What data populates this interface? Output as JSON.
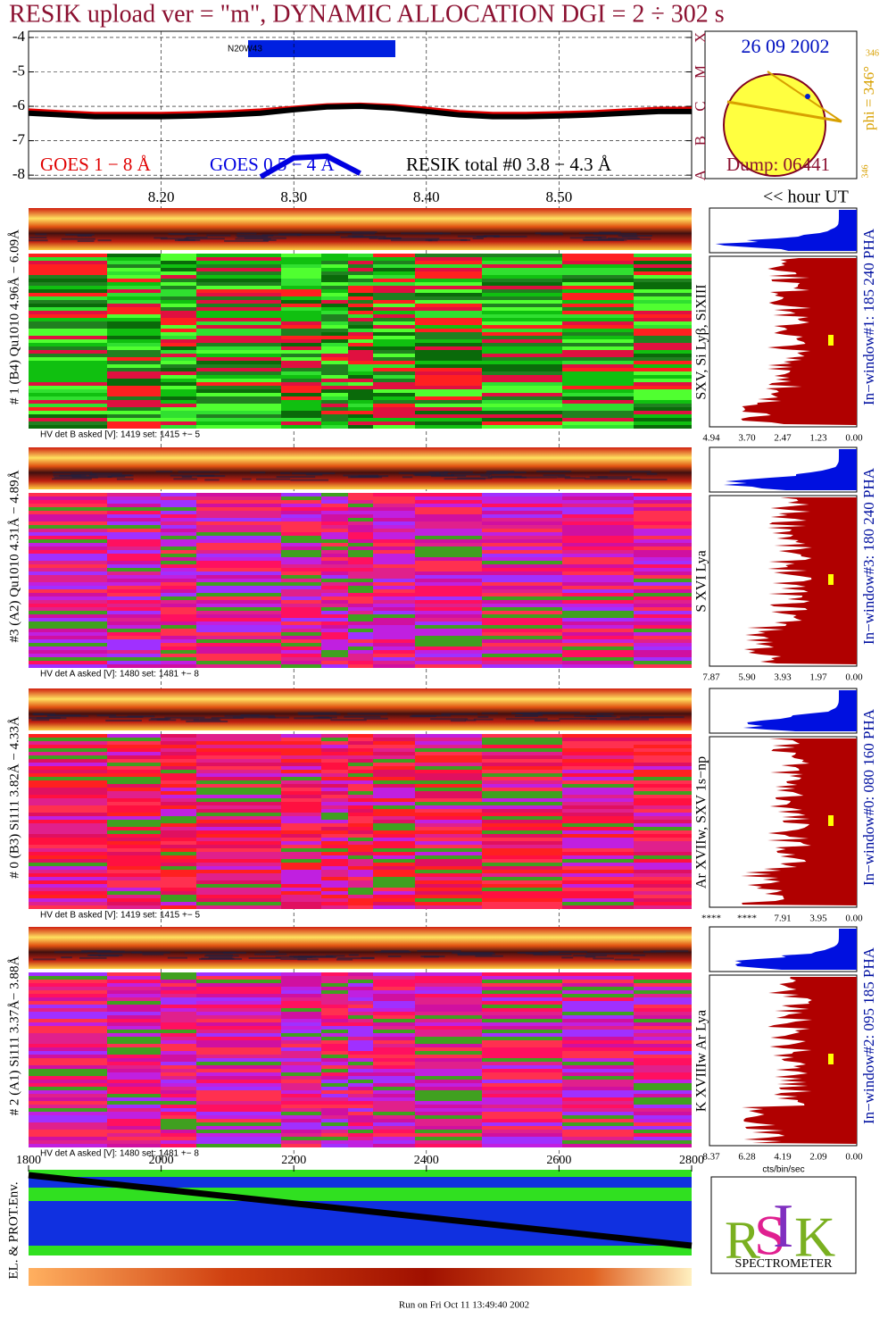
{
  "title": "RESIK upload ver = \"m\", DYNAMIC ALLOCATION  DGI =   2 ÷ 302 s",
  "chart_data": {
    "type": "line",
    "x": [
      8.1,
      8.125,
      8.15,
      8.175,
      8.2,
      8.225,
      8.25,
      8.275,
      8.3,
      8.325,
      8.35,
      8.375,
      8.4,
      8.425,
      8.45,
      8.475,
      8.5,
      8.525,
      8.55,
      8.575,
      8.6
    ],
    "xlim": [
      8.1,
      8.6
    ],
    "xticks": [
      {
        "value": 8.2,
        "label": "8.20"
      },
      {
        "value": 8.3,
        "label": "8.30"
      },
      {
        "value": 8.4,
        "label": "8.40"
      },
      {
        "value": 8.5,
        "label": "8.50"
      }
    ],
    "ylim": [
      -8.1,
      -3.82
    ],
    "yticks": [
      -4,
      -5,
      -6,
      -7,
      -8
    ],
    "y2ticks": [
      {
        "value": -8,
        "label": "A"
      },
      {
        "value": -7,
        "label": "B"
      },
      {
        "value": -6,
        "label": "C"
      },
      {
        "value": -5,
        "label": "M"
      },
      {
        "value": -4,
        "label": "X"
      }
    ],
    "x2lim": [
      1800,
      2800
    ],
    "x2ticks": [
      1800,
      2000,
      2200,
      2400,
      2600,
      2800
    ],
    "x2label": "<< hour UT",
    "grid": true,
    "annotation": "N20W43",
    "series": [
      {
        "name": "GOES 1 − 8 Å",
        "color": "#e00000",
        "values": [
          -6.1,
          -6.15,
          -6.2,
          -6.2,
          -6.2,
          -6.18,
          -6.15,
          -6.1,
          -6.02,
          -5.95,
          -5.93,
          -5.97,
          -6.05,
          -6.15,
          -6.2,
          -6.2,
          -6.18,
          -6.15,
          -6.1,
          -6.05,
          -6.05
        ]
      },
      {
        "name": "GOES 0.5 − 4 Å",
        "color": "#0000e0",
        "values": [
          null,
          null,
          null,
          null,
          null,
          null,
          null,
          -8.05,
          -7.5,
          -7.45,
          -7.95,
          null,
          null,
          null,
          null,
          null,
          null,
          null,
          null,
          null,
          null
        ]
      },
      {
        "name": "RESIK total #0  3.8 − 4.3 Å",
        "color": "#000000",
        "values": [
          -6.2,
          -6.25,
          -6.3,
          -6.3,
          -6.3,
          -6.28,
          -6.25,
          -6.2,
          -6.1,
          -6.02,
          -6.0,
          -6.05,
          -6.15,
          -6.25,
          -6.3,
          -6.3,
          -6.28,
          -6.25,
          -6.2,
          -6.15,
          -6.15
        ]
      }
    ]
  },
  "solar_disk": {
    "date": "26 09 2002",
    "dump": "Dump: 06441",
    "phi": "phi = 346°",
    "angle_top": "346",
    "angle_bottom": "346"
  },
  "panels": [
    {
      "label": "# 1 (B4) Qu1010 4.96Å − 6.09Å",
      "lines": "SXV, Si Lyβ, SiXIII",
      "window": "In−window#1:  185 240 PHA",
      "hv": "HV det B asked [V]:  1419 set:  1415 +−   5",
      "hist_ticks": [
        "4.94",
        "3.70",
        "2.47",
        "1.23",
        "0.00"
      ]
    },
    {
      "label": "#3 (A2) Qu1010  4.31Å − 4.89Å",
      "lines": "S XVI Lya",
      "window": "In−window#3:  180 240 PHA",
      "hv": "HV det A asked [V]:  1480 set:  1481 +−   8",
      "hist_ticks": [
        "7.87",
        "5.90",
        "3.93",
        "1.97",
        "0.00"
      ]
    },
    {
      "label": "# 0 (B3) Si111  3.82Å − 4.33Å",
      "lines": "Ar XVIIw, SXV 1s−np",
      "window": "In−window#0:  080 160 PHA",
      "hv": "HV det B asked [V]:  1419 set:  1415 +−   5",
      "hist_ticks": [
        "****",
        "****",
        "7.91",
        "3.95",
        "0.00"
      ]
    },
    {
      "label": "# 2 (A1) Si111  3.37Å− 3.88Å",
      "lines": "K XVIIIw  Ar Lya",
      "window": "In−window#2:  095 185 PHA",
      "hv": "HV det A asked [V]:  1480 set:  1481 +−   8",
      "hist_ticks": [
        "8.37",
        "6.28",
        "4.19",
        "2.09",
        "0.00"
      ]
    }
  ],
  "hist_unit": "cts/bin/sec",
  "env_label": "EL. & PROT.Env.",
  "logo": "SPECTROMETER",
  "footer": "Run on Fri Oct 11 13:49:40 2002"
}
